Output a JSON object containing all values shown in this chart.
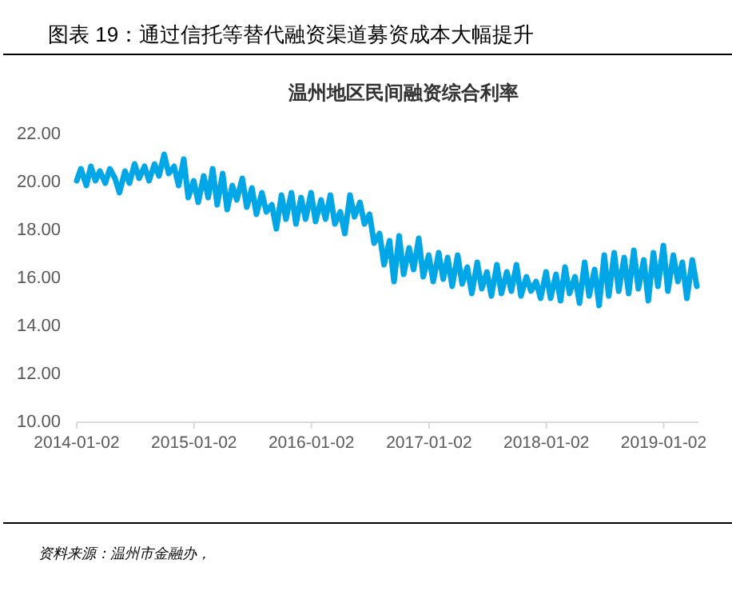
{
  "chart_data": {
    "type": "line",
    "title": "温州地区民间融资综合利率",
    "annotations": [
      "图表 19：通过信托等替代融资渠道募资成本大幅提升",
      "资料来源：温州市金融办，"
    ],
    "x": [
      "2014-01-02",
      "2014-01-15",
      "2014-02-01",
      "2014-02-15",
      "2014-03-01",
      "2014-03-15",
      "2014-04-01",
      "2014-04-15",
      "2014-05-01",
      "2014-05-15",
      "2014-06-01",
      "2014-06-15",
      "2014-07-01",
      "2014-07-15",
      "2014-08-01",
      "2014-08-15",
      "2014-09-01",
      "2014-09-15",
      "2014-10-01",
      "2014-10-15",
      "2014-11-01",
      "2014-11-15",
      "2014-12-01",
      "2014-12-15",
      "2015-01-01",
      "2015-01-15",
      "2015-02-01",
      "2015-02-15",
      "2015-03-01",
      "2015-03-15",
      "2015-04-01",
      "2015-04-15",
      "2015-05-01",
      "2015-05-15",
      "2015-06-01",
      "2015-06-15",
      "2015-07-01",
      "2015-07-15",
      "2015-08-01",
      "2015-08-15",
      "2015-09-01",
      "2015-09-15",
      "2015-10-01",
      "2015-10-15",
      "2015-11-01",
      "2015-11-15",
      "2015-12-01",
      "2015-12-15",
      "2016-01-01",
      "2016-01-15",
      "2016-02-01",
      "2016-02-15",
      "2016-03-01",
      "2016-03-15",
      "2016-04-01",
      "2016-04-15",
      "2016-05-01",
      "2016-05-15",
      "2016-06-01",
      "2016-06-15",
      "2016-07-01",
      "2016-07-15",
      "2016-08-01",
      "2016-08-15",
      "2016-09-01",
      "2016-09-15",
      "2016-10-01",
      "2016-10-15",
      "2016-11-01",
      "2016-11-15",
      "2016-12-01",
      "2016-12-15",
      "2017-01-01",
      "2017-01-15",
      "2017-02-01",
      "2017-02-15",
      "2017-03-01",
      "2017-03-15",
      "2017-04-01",
      "2017-04-15",
      "2017-05-01",
      "2017-05-15",
      "2017-06-01",
      "2017-06-15",
      "2017-07-01",
      "2017-07-15",
      "2017-08-01",
      "2017-08-15",
      "2017-09-01",
      "2017-09-15",
      "2017-10-01",
      "2017-10-15",
      "2017-11-01",
      "2017-11-15",
      "2017-12-01",
      "2017-12-15",
      "2018-01-01",
      "2018-01-15",
      "2018-02-01",
      "2018-02-15",
      "2018-03-01",
      "2018-03-15",
      "2018-04-01",
      "2018-04-15",
      "2018-05-01",
      "2018-05-15",
      "2018-06-01",
      "2018-06-15",
      "2018-07-01",
      "2018-07-15",
      "2018-08-01",
      "2018-08-15",
      "2018-09-01",
      "2018-09-15",
      "2018-10-01",
      "2018-10-15",
      "2018-11-01",
      "2018-11-15",
      "2018-12-01",
      "2018-12-15",
      "2019-01-01",
      "2019-01-15",
      "2019-02-01",
      "2019-02-15",
      "2019-03-01",
      "2019-03-15",
      "2019-04-01",
      "2019-04-15"
    ],
    "series": [
      {
        "color": "#00a6e6",
        "values": [
          20.0,
          20.5,
          19.8,
          20.6,
          20.0,
          20.4,
          19.9,
          20.5,
          20.1,
          19.5,
          20.4,
          19.9,
          20.7,
          20.1,
          20.6,
          20.0,
          20.7,
          20.2,
          21.1,
          20.3,
          20.6,
          19.8,
          20.9,
          19.3,
          20.0,
          19.1,
          20.2,
          19.3,
          20.5,
          19.0,
          20.3,
          18.8,
          19.8,
          19.2,
          20.1,
          18.9,
          19.7,
          18.6,
          19.5,
          18.7,
          19.0,
          18.0,
          19.4,
          18.4,
          19.5,
          18.2,
          19.3,
          18.4,
          19.5,
          18.3,
          19.2,
          18.4,
          19.4,
          18.2,
          18.7,
          17.8,
          19.4,
          18.5,
          19.1,
          18.2,
          18.6,
          17.4,
          17.8,
          16.5,
          17.5,
          15.8,
          17.7,
          16.1,
          17.2,
          16.3,
          17.6,
          16.0,
          16.9,
          15.8,
          17.0,
          15.9,
          16.8,
          15.6,
          16.9,
          15.7,
          16.4,
          15.3,
          16.6,
          15.5,
          16.2,
          15.2,
          16.5,
          15.3,
          16.2,
          15.4,
          16.5,
          15.2,
          16.0,
          15.4,
          15.8,
          15.1,
          16.2,
          15.1,
          16.1,
          15.0,
          16.4,
          15.3,
          16.0,
          14.9,
          16.6,
          15.2,
          16.3,
          14.8,
          16.9,
          15.2,
          17.0,
          15.4,
          16.8,
          15.3,
          17.1,
          15.5,
          16.7,
          15.0,
          17.0,
          15.6,
          17.3,
          15.4,
          16.9,
          15.8,
          16.6,
          15.1,
          16.7,
          15.6
        ]
      }
    ],
    "xlim": [
      "2014-01-02",
      "2019-04-20"
    ],
    "xticks": [
      {
        "value": "2014-01-02",
        "label": "2014-01-02"
      },
      {
        "value": "2015-01-02",
        "label": "2015-01-02"
      },
      {
        "value": "2016-01-02",
        "label": "2016-01-02"
      },
      {
        "value": "2017-01-02",
        "label": "2017-01-02"
      },
      {
        "value": "2018-01-02",
        "label": "2018-01-02"
      },
      {
        "value": "2019-01-02",
        "label": "2019-01-02"
      }
    ],
    "ylim": [
      10,
      22
    ],
    "yticks": [
      {
        "value": 10,
        "label": "10.00"
      },
      {
        "value": 12,
        "label": "12.00"
      },
      {
        "value": 14,
        "label": "14.00"
      },
      {
        "value": 16,
        "label": "16.00"
      },
      {
        "value": 18,
        "label": "18.00"
      },
      {
        "value": 20,
        "label": "20.00"
      },
      {
        "value": 22,
        "label": "22.00"
      }
    ],
    "grid": false,
    "marker": "none",
    "line_style": "solid"
  }
}
